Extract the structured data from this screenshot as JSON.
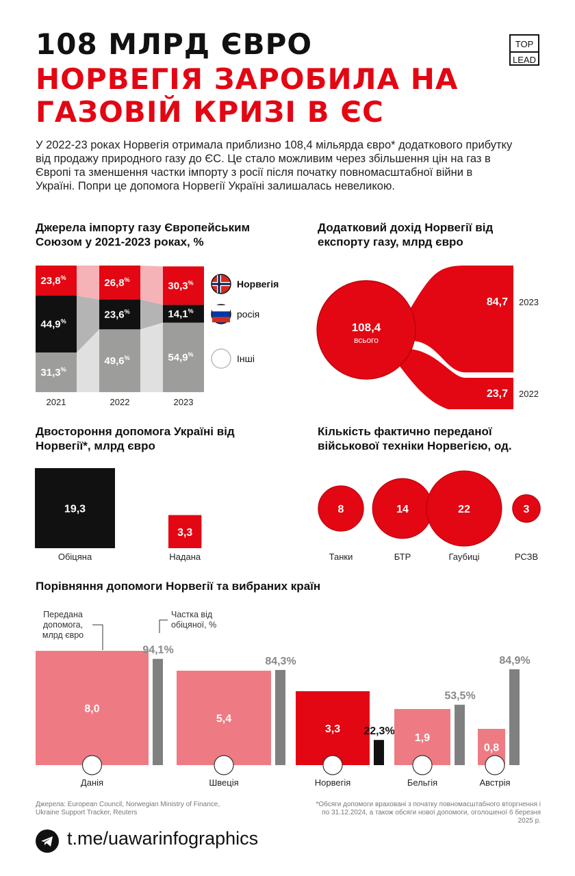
{
  "header": {
    "line1": "108 МЛРД ЄВРО",
    "line2": "НОРВЕГІЯ ЗАРОБИЛА НА ГАЗОВІЙ КРИЗІ В ЄС",
    "logo_top": "TOP",
    "logo_bottom": "LEAD"
  },
  "intro": "У 2022-23 роках Норвегія отримала приблизно 108,4 мільярда євро* додаткового прибутку від продажу природного газу до ЄС. Це стало можливим через збільшення цін на газ в Європі та зменшення частки імпорту з росії після початку повномасштабної війни в Україні. Попри це допомога Норвегії Україні залишалась невеликою.",
  "colors": {
    "red": "#e30613",
    "black": "#111111",
    "gray": "#9d9d9c",
    "pink": "#ee7b83",
    "lightpink": "#f5b3b8",
    "darkgray": "#808080"
  },
  "chart_data": [
    {
      "type": "bar",
      "stacked": true,
      "title": "Джерела імпорту газу Європейським Союзом у 2021-2023 роках, %",
      "categories": [
        "2021",
        "2022",
        "2023"
      ],
      "series": [
        {
          "name": "Інші",
          "values": [
            31.3,
            49.6,
            54.9
          ],
          "labels": [
            "31,3",
            "49,6",
            "54,9"
          ],
          "color": "#9d9d9c"
        },
        {
          "name": "росія",
          "values": [
            44.9,
            23.6,
            14.1
          ],
          "labels": [
            "44,9",
            "23,6",
            "14,1"
          ],
          "color": "#111111"
        },
        {
          "name": "Норвегія",
          "values": [
            23.8,
            26.8,
            30.3
          ],
          "labels": [
            "23,8",
            "26,8",
            "30,3"
          ],
          "color": "#e30613"
        }
      ],
      "pct": "%",
      "legend": [
        "Норвегія",
        "росія",
        "Інші"
      ]
    },
    {
      "type": "sankey",
      "title": "Додатковий дохід Норвегії від експорту газу, млрд євро",
      "total": 108.4,
      "total_label": "108,4",
      "total_caption": "всього",
      "flows": [
        {
          "year": "2023",
          "value": 84.7,
          "label": "84,7"
        },
        {
          "year": "2022",
          "value": 23.7,
          "label": "23,7"
        }
      ]
    },
    {
      "type": "bar",
      "title": "Двостороння допомога Україні від Норвегії*, млрд євро",
      "categories": [
        "Обіцяна",
        "Надана"
      ],
      "values": [
        19.3,
        3.3
      ],
      "labels": [
        "19,3",
        "3,3"
      ]
    },
    {
      "type": "bubble",
      "title": "Кількість фактично переданої військової техніки Норвегією, од.",
      "categories": [
        "Танки",
        "БТР",
        "Гаубиці",
        "РСЗВ"
      ],
      "values": [
        8,
        14,
        22,
        3
      ]
    },
    {
      "type": "bar",
      "title": "Порівняння допомоги Норвегії та вибраних країн",
      "legend_delivered": "Передана допомога, млрд євро",
      "legend_share": "Частка від обіцяної, %",
      "categories": [
        "Данія",
        "Швеція",
        "Норвегія",
        "Бельгія",
        "Австрія"
      ],
      "delivered": [
        8.0,
        5.4,
        3.3,
        1.9,
        0.8
      ],
      "delivered_labels": [
        "8,0",
        "5,4",
        "3,3",
        "1,9",
        "0,8"
      ],
      "share": [
        94.1,
        84.3,
        22.3,
        53.5,
        84.9
      ],
      "share_labels": [
        "94,1%",
        "84,3%",
        "22,3%",
        "53,5%",
        "84,9%"
      ]
    }
  ],
  "footer": {
    "sources": "Джерела: European Council, Norwegian Ministry of Finance, Ukraine Support Tracker, Reuters",
    "note": "*Обсяги допомоги враховані з початку повномасштабного вторгнення і по 31.12.2024, а також обсяги нової допомоги, оголошеної 6 березня 2025 р.",
    "telegram": "t.me/uawarinfographics"
  }
}
